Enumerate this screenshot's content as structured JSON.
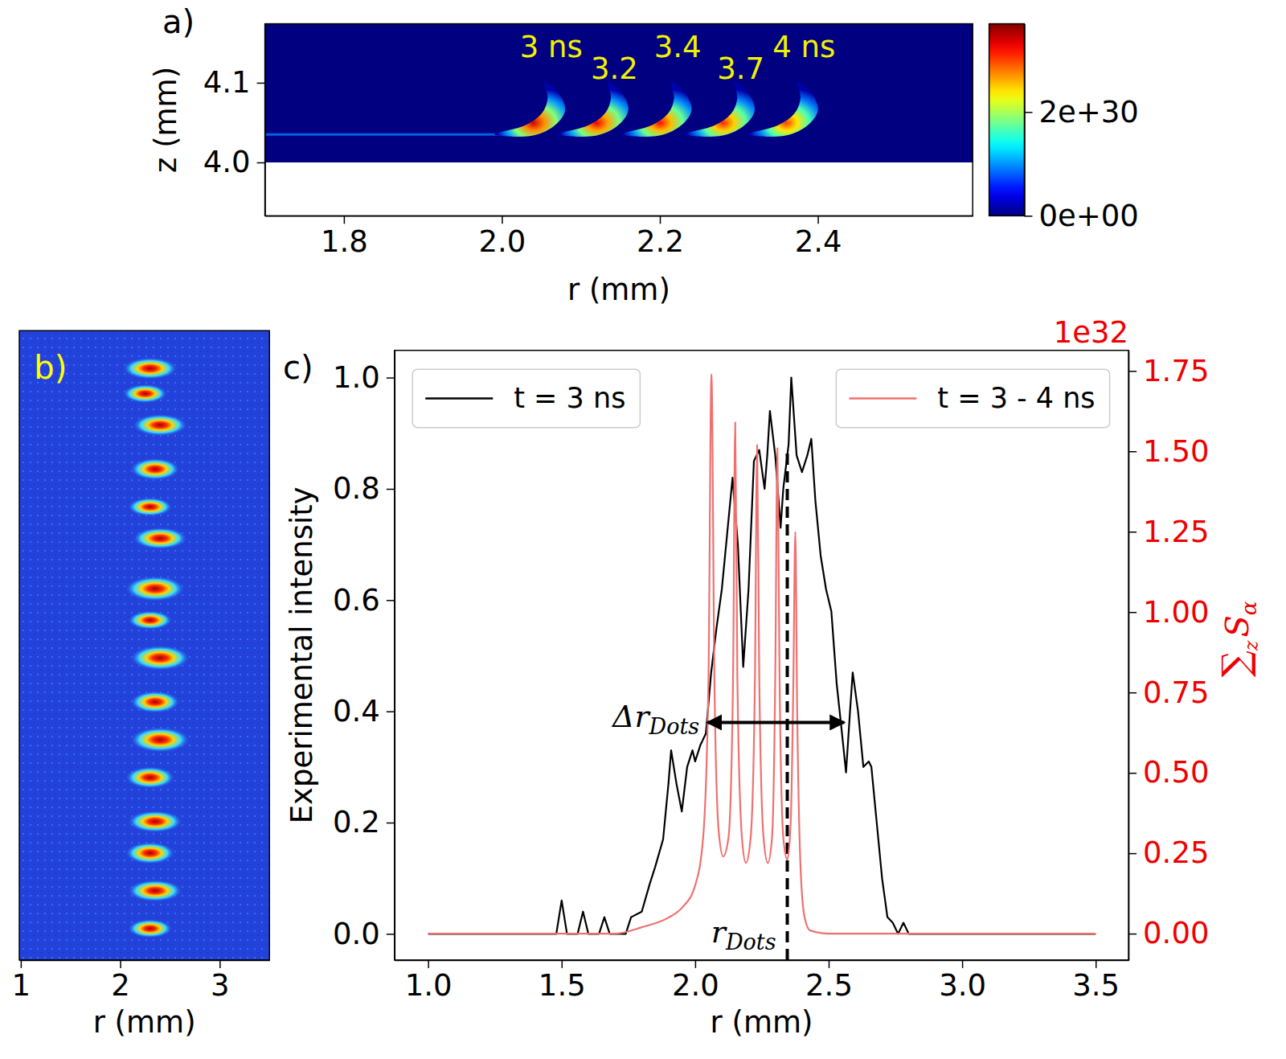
{
  "chart_data": [
    {
      "type": "heatmap",
      "panel_label": "a)",
      "x_label": "r (mm)",
      "y_label": "z (mm)",
      "xlim": [
        1.7,
        2.596
      ],
      "ylim": [
        3.933,
        4.174
      ],
      "xticks": [
        1.8,
        {
          "value": 2,
          "label": "2.0"
        },
        2.2,
        2.4
      ],
      "yticks": [
        {
          "value": 4,
          "label": "4.0"
        },
        4.1
      ],
      "field_r": [
        1.7,
        2.596
      ],
      "field_z": [
        4.0,
        4.174
      ],
      "field_value": 0,
      "trail": {
        "r": [
          1.7,
          2.0
        ],
        "z": 4.035,
        "value": 9e+29
      },
      "crescents": [
        {
          "label": "3 ns",
          "r": 2.05,
          "z": 4.065,
          "value": 3.4e+30
        },
        {
          "label": "3.2",
          "r": 2.13,
          "z": 4.065,
          "value": 3.3e+30
        },
        {
          "label": "3.4",
          "r": 2.21,
          "z": 4.065,
          "value": 3.2e+30
        },
        {
          "label": "3.7",
          "r": 2.29,
          "z": 4.065,
          "value": 3.1e+30
        },
        {
          "label": "4 ns",
          "r": 2.37,
          "z": 4.065,
          "value": 3e+30
        }
      ],
      "colorbar": {
        "range": [
          0,
          3.7e+30
        ],
        "ticks": [
          {
            "value": 0,
            "label": "0e+00"
          },
          {
            "value": 2e+30,
            "label": "2e+30"
          }
        ]
      }
    },
    {
      "type": "image",
      "panel_label": "b)",
      "x_label": "r (mm)",
      "xlim": [
        0.985,
        3.5
      ],
      "xticks": [
        1,
        2,
        3
      ],
      "ylim": [
        0,
        1
      ],
      "tick_labels": "x",
      "clusters": [
        {
          "r": 2.3,
          "y": 0.06,
          "width": 0.55,
          "height": 0.035
        },
        {
          "r": 2.25,
          "y": 0.1,
          "width": 0.45,
          "height": 0.03
        },
        {
          "r": 2.4,
          "y": 0.15,
          "width": 0.55,
          "height": 0.035
        },
        {
          "r": 2.35,
          "y": 0.22,
          "width": 0.5,
          "height": 0.035
        },
        {
          "r": 2.3,
          "y": 0.28,
          "width": 0.45,
          "height": 0.03
        },
        {
          "r": 2.4,
          "y": 0.33,
          "width": 0.55,
          "height": 0.035
        },
        {
          "r": 2.35,
          "y": 0.41,
          "width": 0.6,
          "height": 0.04
        },
        {
          "r": 2.3,
          "y": 0.46,
          "width": 0.45,
          "height": 0.03
        },
        {
          "r": 2.4,
          "y": 0.52,
          "width": 0.6,
          "height": 0.04
        },
        {
          "r": 2.35,
          "y": 0.59,
          "width": 0.5,
          "height": 0.035
        },
        {
          "r": 2.4,
          "y": 0.65,
          "width": 0.6,
          "height": 0.04
        },
        {
          "r": 2.3,
          "y": 0.71,
          "width": 0.5,
          "height": 0.035
        },
        {
          "r": 2.35,
          "y": 0.78,
          "width": 0.55,
          "height": 0.035
        },
        {
          "r": 2.3,
          "y": 0.83,
          "width": 0.5,
          "height": 0.035
        },
        {
          "r": 2.35,
          "y": 0.89,
          "width": 0.55,
          "height": 0.035
        },
        {
          "r": 2.3,
          "y": 0.95,
          "width": 0.45,
          "height": 0.03
        }
      ]
    },
    {
      "type": "line",
      "panel_label": "c)",
      "x_label": "r (mm)",
      "y_label": "Experimental intensity",
      "y2_label": [
        "∑",
        "z",
        "S",
        "α"
      ],
      "y2_multiplier": "1e32",
      "xlim": [
        0.874,
        3.623
      ],
      "xticks": [
        {
          "value": 1,
          "label": "1.0"
        },
        1.5,
        {
          "value": 2,
          "label": "2.0"
        },
        2.5,
        {
          "value": 3,
          "label": "3.0"
        },
        3.5
      ],
      "ylim": [
        -0.047,
        1.049
      ],
      "yticks": [
        {
          "value": 0,
          "label": "0.0"
        },
        0.2,
        0.4,
        0.6,
        0.8,
        {
          "value": 1,
          "label": "1.0"
        }
      ],
      "y2lim": [
        -0.082,
        1.814
      ],
      "y2ticks": [
        {
          "value": 0,
          "label": "0.00"
        },
        0.25,
        {
          "value": 0.5,
          "label": "0.50"
        },
        0.75,
        {
          "value": 1,
          "label": "1.00"
        },
        1.25,
        {
          "value": 1.5,
          "label": "1.50"
        },
        1.75
      ],
      "legend": "top",
      "series": [
        {
          "name": "t = 3 ns",
          "color": "#000000",
          "x": [
            1.0,
            1.48,
            1.5,
            1.52,
            1.56,
            1.58,
            1.6,
            1.64,
            1.66,
            1.68,
            1.74,
            1.76,
            1.8,
            1.83,
            1.85,
            1.88,
            1.9,
            1.91,
            1.93,
            1.95,
            1.97,
            1.99,
            2.0,
            2.02,
            2.04,
            2.06,
            2.08,
            2.1,
            2.12,
            2.14,
            2.16,
            2.18,
            2.2,
            2.22,
            2.24,
            2.26,
            2.27,
            2.28,
            2.3,
            2.32,
            2.33,
            2.35,
            2.36,
            2.38,
            2.4,
            2.42,
            2.435,
            2.45,
            2.47,
            2.49,
            2.51,
            2.53,
            2.55,
            2.565,
            2.58,
            2.59,
            2.61,
            2.63,
            2.65,
            2.66,
            2.68,
            2.7,
            2.72,
            2.74,
            2.76,
            2.78,
            2.8,
            3.5
          ],
          "values": [
            0,
            0,
            0.06,
            0,
            0,
            0.04,
            0,
            0,
            0.03,
            0,
            0,
            0.03,
            0.04,
            0.09,
            0.12,
            0.17,
            0.27,
            0.33,
            0.27,
            0.22,
            0.3,
            0.33,
            0.31,
            0.34,
            0.36,
            0.47,
            0.55,
            0.62,
            0.72,
            0.82,
            0.7,
            0.48,
            0.62,
            0.85,
            0.87,
            0.8,
            0.86,
            0.94,
            0.86,
            0.73,
            0.8,
            0.88,
            1.0,
            0.86,
            0.83,
            0.86,
            0.89,
            0.78,
            0.68,
            0.62,
            0.58,
            0.45,
            0.36,
            0.29,
            0.4,
            0.47,
            0.4,
            0.3,
            0.31,
            0.3,
            0.2,
            0.1,
            0.03,
            0.02,
            0,
            0.02,
            0,
            0
          ]
        },
        {
          "name": "t = 3 - 4 ns",
          "color": "#f07070",
          "axis": "y2",
          "x": [
            1.0,
            1.7,
            1.8,
            1.9,
            1.95,
            2.0,
            2.03,
            2.05,
            2.061,
            2.072,
            2.088,
            2.105,
            2.125,
            2.142,
            2.15,
            2.158,
            2.175,
            2.19,
            2.208,
            2.224,
            2.232,
            2.24,
            2.256,
            2.272,
            2.288,
            2.3,
            2.308,
            2.316,
            2.33,
            2.345,
            2.358,
            2.368,
            2.375,
            2.382,
            2.395,
            2.41,
            2.43,
            2.5,
            3.5
          ],
          "values": [
            0,
            0,
            0.02,
            0.05,
            0.08,
            0.15,
            0.3,
            0.8,
            1.74,
            0.8,
            0.32,
            0.24,
            0.3,
            0.8,
            1.59,
            0.8,
            0.3,
            0.22,
            0.3,
            0.8,
            1.52,
            0.8,
            0.3,
            0.22,
            0.3,
            0.8,
            1.51,
            0.8,
            0.3,
            0.23,
            0.35,
            0.8,
            1.25,
            0.7,
            0.2,
            0.05,
            0.01,
            0,
            0
          ]
        }
      ],
      "annotations": {
        "r_dots": {
          "x": 2.345,
          "y_top": 0.875,
          "label": [
            "r",
            "Dots"
          ]
        },
        "delta_r_dots": {
          "x": [
            2.046,
            2.558
          ],
          "y": 0.38,
          "label": [
            "Δr",
            "Dots"
          ]
        }
      }
    }
  ]
}
